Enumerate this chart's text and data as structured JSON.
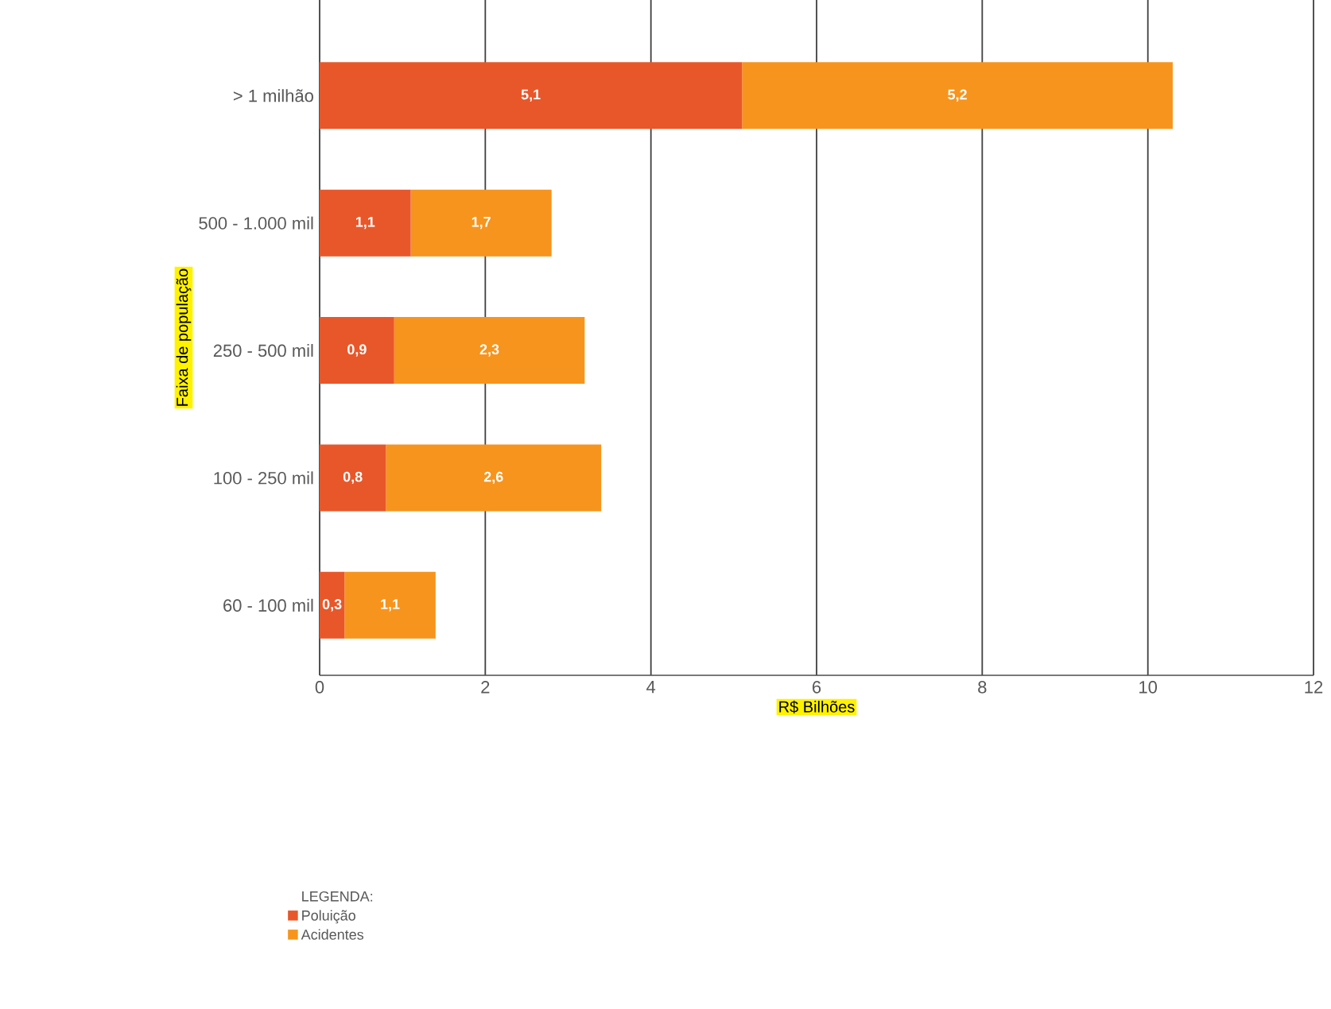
{
  "chart_data": {
    "type": "bar",
    "orientation": "horizontal",
    "stacked": true,
    "xlabel": "R$ Bilhões",
    "ylabel": "Faixa de população",
    "legend_title": "LEGENDA:",
    "categories": [
      "> 1 milhão",
      "500 - 1.000 mil",
      "250 - 500 mil",
      "100 - 250 mil",
      "60 - 100 mil"
    ],
    "series": [
      {
        "name": "Poluição",
        "color": "#e8572a",
        "values": [
          5.1,
          1.1,
          0.9,
          0.8,
          0.3
        ],
        "value_labels": [
          "5,1",
          "1,1",
          "0,9",
          "0,8",
          "0,3"
        ]
      },
      {
        "name": "Acidentes",
        "color": "#f7941d",
        "values": [
          5.2,
          1.7,
          2.3,
          2.6,
          1.1
        ],
        "value_labels": [
          "5,2",
          "1,7",
          "2,3",
          "2,6",
          "1,1"
        ]
      }
    ],
    "xlim": [
      0,
      12
    ],
    "xticks": [
      0,
      2,
      4,
      6,
      8,
      10,
      12
    ],
    "grid": "x",
    "legend": "bottom"
  }
}
